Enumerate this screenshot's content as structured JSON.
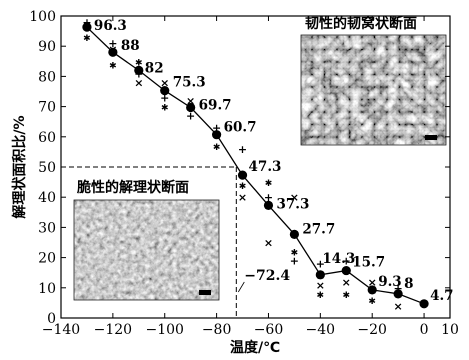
{
  "chart_data": {
    "type": "line",
    "xlabel": "温度/℃",
    "ylabel": "解理状面积比/%",
    "xlim": [
      -140,
      10
    ],
    "ylim": [
      0,
      100
    ],
    "xticks": [
      "−140",
      "−120",
      "−100",
      "−80",
      "−60",
      "−40",
      "−20",
      "0",
      "10"
    ],
    "yticks": [
      "0",
      "10",
      "20",
      "30",
      "40",
      "50",
      "60",
      "70",
      "80",
      "90",
      "100"
    ],
    "grid": false,
    "series": [
      {
        "marker": "filled-circle",
        "points": [
          {
            "x": -130,
            "y": 96.3,
            "label": "96.3"
          },
          {
            "x": -120,
            "y": 88,
            "label": "88"
          },
          {
            "x": -110,
            "y": 82,
            "label": "82"
          },
          {
            "x": -100,
            "y": 75.3,
            "label": "75.3"
          },
          {
            "x": -90,
            "y": 69.7,
            "label": "69.7"
          },
          {
            "x": -80,
            "y": 60.7,
            "label": "60.7"
          },
          {
            "x": -70,
            "y": 47.3,
            "label": "47.3"
          },
          {
            "x": -60,
            "y": 37.3,
            "label": "37.3"
          },
          {
            "x": -50,
            "y": 27.7,
            "label": "27.7"
          },
          {
            "x": -40,
            "y": 14.3,
            "label": "14.3"
          },
          {
            "x": -30,
            "y": 15.7,
            "label": "15.7"
          },
          {
            "x": -20,
            "y": 9.3,
            "label": "9.3"
          },
          {
            "x": -10,
            "y": 8,
            "label": "8"
          },
          {
            "x": 0,
            "y": 4.7,
            "label": "4.7"
          }
        ]
      }
    ],
    "scatter_samples": [
      {
        "x": -130,
        "y": 98,
        "marker": "+"
      },
      {
        "x": -130,
        "y": 93,
        "marker": "*"
      },
      {
        "x": -130,
        "y": 97,
        "marker": "×"
      },
      {
        "x": -120,
        "y": 91,
        "marker": "+"
      },
      {
        "x": -120,
        "y": 84,
        "marker": "*"
      },
      {
        "x": -120,
        "y": 89,
        "marker": "×"
      },
      {
        "x": -110,
        "y": 85,
        "marker": "*"
      },
      {
        "x": -110,
        "y": 78,
        "marker": "×"
      },
      {
        "x": -110,
        "y": 81,
        "marker": "+"
      },
      {
        "x": -100,
        "y": 73,
        "marker": "+"
      },
      {
        "x": -100,
        "y": 70,
        "marker": "*"
      },
      {
        "x": -100,
        "y": 78,
        "marker": "×"
      },
      {
        "x": -90,
        "y": 67,
        "marker": "+"
      },
      {
        "x": -90,
        "y": 72,
        "marker": "×"
      },
      {
        "x": -80,
        "y": 63,
        "marker": "+"
      },
      {
        "x": -80,
        "y": 57,
        "marker": "*"
      },
      {
        "x": -70,
        "y": 56,
        "marker": "+"
      },
      {
        "x": -70,
        "y": 44,
        "marker": "*"
      },
      {
        "x": -70,
        "y": 40,
        "marker": "×"
      },
      {
        "x": -60,
        "y": 45,
        "marker": "*"
      },
      {
        "x": -60,
        "y": 40,
        "marker": "+"
      },
      {
        "x": -60,
        "y": 25,
        "marker": "×"
      },
      {
        "x": -50,
        "y": 40,
        "marker": "×"
      },
      {
        "x": -50,
        "y": 22,
        "marker": "*"
      },
      {
        "x": -50,
        "y": 19,
        "marker": "+"
      },
      {
        "x": -40,
        "y": 18,
        "marker": "+"
      },
      {
        "x": -40,
        "y": 11,
        "marker": "×"
      },
      {
        "x": -40,
        "y": 8,
        "marker": "*"
      },
      {
        "x": -30,
        "y": 19,
        "marker": "+"
      },
      {
        "x": -30,
        "y": 12,
        "marker": "×"
      },
      {
        "x": -30,
        "y": 8,
        "marker": "*"
      },
      {
        "x": -20,
        "y": 12,
        "marker": "×"
      },
      {
        "x": -20,
        "y": 6,
        "marker": "*"
      },
      {
        "x": -10,
        "y": 4,
        "marker": "×"
      },
      {
        "x": -10,
        "y": 10,
        "marker": "+"
      }
    ],
    "annotations": {
      "transition_temp": {
        "x": -72.4,
        "y": 50,
        "label": "−72.4"
      },
      "inset_top": {
        "title": "韧性的韧窝状断面"
      },
      "inset_bottom": {
        "title": "脆性的解理状断面"
      }
    },
    "colors": {
      "line": "#000000",
      "marker": "#000000",
      "axis": "#000000",
      "background": "#ffffff"
    }
  }
}
